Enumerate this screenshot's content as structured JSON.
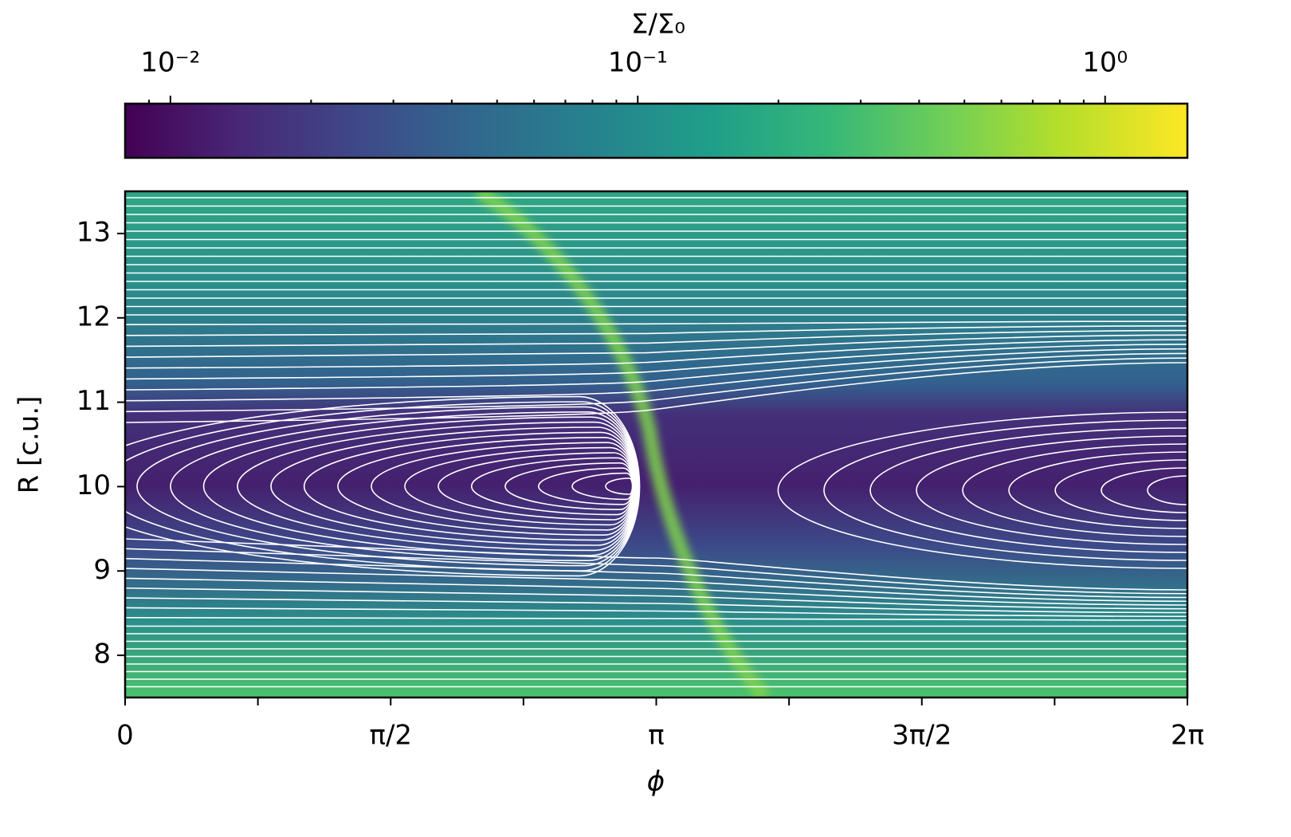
{
  "chart_data": {
    "type": "heatmap",
    "xlabel": "ϕ",
    "ylabel": "R [c.u.]",
    "xlim": [
      0,
      6.2832
    ],
    "xticks": [
      {
        "value": 0,
        "label": "0"
      },
      {
        "value": 1.5708,
        "label": "π/2"
      },
      {
        "value": 3.1416,
        "label": "π"
      },
      {
        "value": 4.7124,
        "label": "3π/2"
      },
      {
        "value": 6.2832,
        "label": "2π"
      }
    ],
    "xminorticks": [
      0.7854,
      2.3562,
      3.927,
      5.4978
    ],
    "ylim": [
      7.5,
      13.5
    ],
    "yticks": [
      8,
      9,
      10,
      11,
      12,
      13
    ],
    "colorbar": {
      "label": "Σ/Σ₀",
      "scale": "log",
      "lim": [
        0.008,
        1.5
      ],
      "ticks": [
        {
          "value": 0.01,
          "label": "10⁻²"
        },
        {
          "value": 0.1,
          "label": "10⁻¹"
        },
        {
          "value": 1,
          "label": "10⁰"
        }
      ],
      "minorticks": [
        0.009,
        0.02,
        0.03,
        0.04,
        0.05,
        0.06,
        0.07,
        0.08,
        0.09,
        0.2,
        0.3,
        0.4,
        0.5,
        0.6,
        0.7,
        0.8,
        0.9
      ]
    }
  }
}
